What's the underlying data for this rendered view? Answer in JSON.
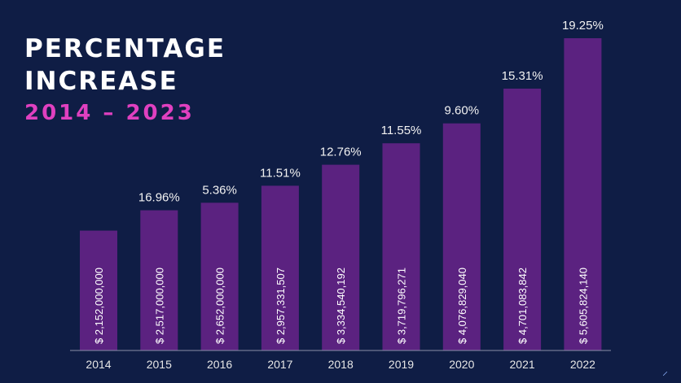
{
  "header": {
    "title_line1": "PERCENTAGE",
    "title_line2": "INCREASE",
    "subtitle": "2014 – 2023"
  },
  "colors": {
    "background": "#0f1d45",
    "bar": "#5b2280",
    "subtitle": "#e040c0",
    "axis": "#8a8fa8"
  },
  "chart_data": {
    "type": "bar",
    "title": "PERCENTAGE INCREASE",
    "subtitle": "2014 – 2023",
    "categories": [
      "2014",
      "2015",
      "2016",
      "2017",
      "2018",
      "2019",
      "2020",
      "2021",
      "2022"
    ],
    "values": [
      2152000000,
      2517000000,
      2652000000,
      2957331507,
      3334540192,
      3719796271,
      4076829040,
      4701083842,
      5605824140
    ],
    "value_labels": [
      "$ 2,152,000,000",
      "$ 2,517,000,000",
      "$ 2,652,000,000",
      "$ 2,957,331,507",
      "$ 3,334,540,192",
      "$ 3,719,796,271",
      "$ 4,076,829,040",
      "$ 4,701,083,842",
      "$ 5,605,824,140"
    ],
    "pct_labels": [
      "",
      "16.96%",
      "5.36%",
      "11.51%",
      "12.76%",
      "11.55%",
      "9.60%",
      "15.31%",
      "19.25%"
    ],
    "xlabel": "",
    "ylabel": "",
    "grid": false
  }
}
